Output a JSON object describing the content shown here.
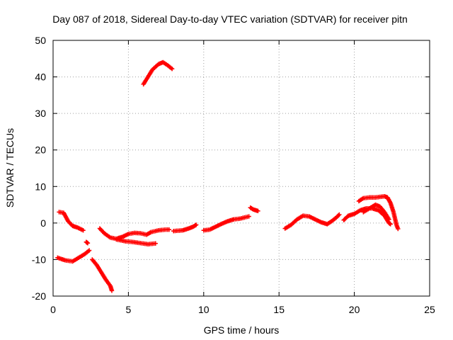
{
  "chart_data": {
    "type": "scatter",
    "title": "Day 087 of 2018, Sidereal Day-to-day VTEC variation (SDTVAR) for receiver pitn",
    "xlabel": "GPS time / hours",
    "ylabel": "SDTVAR / TECUs",
    "xlim": [
      0,
      25
    ],
    "ylim": [
      -20,
      50
    ],
    "xticks": [
      0,
      5,
      10,
      15,
      20,
      25
    ],
    "yticks": [
      -20,
      -10,
      0,
      10,
      20,
      30,
      40,
      50
    ],
    "grid": true,
    "marker": "+",
    "color": "#ff0000",
    "series": [
      {
        "name": "seg1",
        "points": [
          [
            0.3,
            -9.5
          ],
          [
            0.8,
            -10.2
          ],
          [
            1.3,
            -10.5
          ],
          [
            1.7,
            -9.5
          ],
          [
            2.1,
            -8.5
          ],
          [
            2.4,
            -7.5
          ]
        ]
      },
      {
        "name": "seg2",
        "points": [
          [
            0.4,
            3.0
          ],
          [
            0.7,
            2.8
          ],
          [
            1.0,
            0.5
          ],
          [
            1.3,
            -0.8
          ],
          [
            1.6,
            -1.2
          ],
          [
            2.0,
            -2.0
          ]
        ]
      },
      {
        "name": "seg3",
        "points": [
          [
            2.2,
            -5.2
          ],
          [
            2.3,
            -5.5
          ]
        ]
      },
      {
        "name": "seg4",
        "points": [
          [
            2.6,
            -10.0
          ],
          [
            2.9,
            -11.5
          ],
          [
            3.2,
            -13.5
          ],
          [
            3.5,
            -15.5
          ],
          [
            3.8,
            -17.2
          ],
          [
            3.9,
            -18.5
          ]
        ]
      },
      {
        "name": "seg5",
        "points": [
          [
            3.1,
            -1.5
          ],
          [
            3.4,
            -2.8
          ],
          [
            3.8,
            -4.0
          ],
          [
            4.2,
            -4.3
          ],
          [
            4.6,
            -3.8
          ],
          [
            5.0,
            -3.0
          ],
          [
            5.4,
            -2.7
          ],
          [
            5.8,
            -2.8
          ],
          [
            6.2,
            -3.2
          ],
          [
            6.5,
            -2.5
          ],
          [
            7.0,
            -2.0
          ],
          [
            7.5,
            -1.8
          ],
          [
            7.7,
            -1.8
          ]
        ]
      },
      {
        "name": "seg6",
        "points": [
          [
            4.2,
            -4.5
          ],
          [
            4.8,
            -5.0
          ],
          [
            5.3,
            -5.2
          ],
          [
            5.8,
            -5.5
          ],
          [
            6.3,
            -5.8
          ],
          [
            6.8,
            -5.6
          ]
        ]
      },
      {
        "name": "seg7",
        "points": [
          [
            8.0,
            -2.2
          ],
          [
            8.6,
            -2.0
          ],
          [
            9.0,
            -1.5
          ],
          [
            9.3,
            -1.0
          ],
          [
            9.5,
            -0.5
          ]
        ]
      },
      {
        "name": "seg8",
        "points": [
          [
            6.0,
            38.0
          ],
          [
            6.3,
            40.0
          ],
          [
            6.6,
            42.0
          ],
          [
            7.0,
            43.5
          ],
          [
            7.3,
            44.0
          ],
          [
            7.6,
            43.2
          ],
          [
            7.9,
            42.2
          ]
        ]
      },
      {
        "name": "seg9",
        "points": [
          [
            10.0,
            -2.0
          ],
          [
            10.4,
            -1.8
          ],
          [
            10.8,
            -1.0
          ],
          [
            11.2,
            -0.2
          ],
          [
            11.6,
            0.5
          ],
          [
            12.0,
            1.0
          ],
          [
            12.4,
            1.2
          ],
          [
            12.8,
            1.6
          ],
          [
            13.0,
            1.8
          ]
        ]
      },
      {
        "name": "seg10",
        "points": [
          [
            13.1,
            4.2
          ],
          [
            13.3,
            3.7
          ],
          [
            13.6,
            3.3
          ]
        ]
      },
      {
        "name": "seg11",
        "points": [
          [
            15.4,
            -1.5
          ],
          [
            15.8,
            -0.5
          ],
          [
            16.2,
            1.0
          ],
          [
            16.6,
            2.0
          ],
          [
            17.0,
            1.8
          ],
          [
            17.4,
            1.0
          ],
          [
            17.8,
            0.2
          ],
          [
            18.2,
            -0.3
          ],
          [
            18.5,
            0.5
          ],
          [
            18.8,
            1.5
          ],
          [
            19.0,
            2.3
          ]
        ]
      },
      {
        "name": "seg12",
        "points": [
          [
            19.3,
            0.8
          ],
          [
            19.6,
            2.0
          ],
          [
            20.0,
            2.5
          ],
          [
            20.4,
            3.5
          ],
          [
            20.8,
            4.0
          ],
          [
            21.2,
            4.0
          ],
          [
            21.6,
            3.5
          ],
          [
            22.0,
            2.0
          ],
          [
            22.3,
            0.0
          ],
          [
            22.4,
            -0.3
          ]
        ]
      },
      {
        "name": "seg13",
        "points": [
          [
            20.3,
            6.0
          ],
          [
            20.6,
            6.8
          ],
          [
            21.0,
            7.0
          ],
          [
            21.4,
            7.0
          ],
          [
            21.8,
            7.2
          ],
          [
            22.0,
            7.3
          ],
          [
            22.2,
            7.0
          ],
          [
            22.4,
            5.5
          ],
          [
            22.6,
            3.0
          ],
          [
            22.8,
            -0.5
          ],
          [
            22.9,
            -1.6
          ]
        ]
      },
      {
        "name": "seg14",
        "points": [
          [
            20.6,
            3.0
          ],
          [
            21.0,
            4.0
          ],
          [
            21.4,
            5.0
          ],
          [
            21.7,
            4.5
          ],
          [
            22.0,
            3.0
          ],
          [
            22.3,
            1.0
          ]
        ]
      }
    ]
  }
}
